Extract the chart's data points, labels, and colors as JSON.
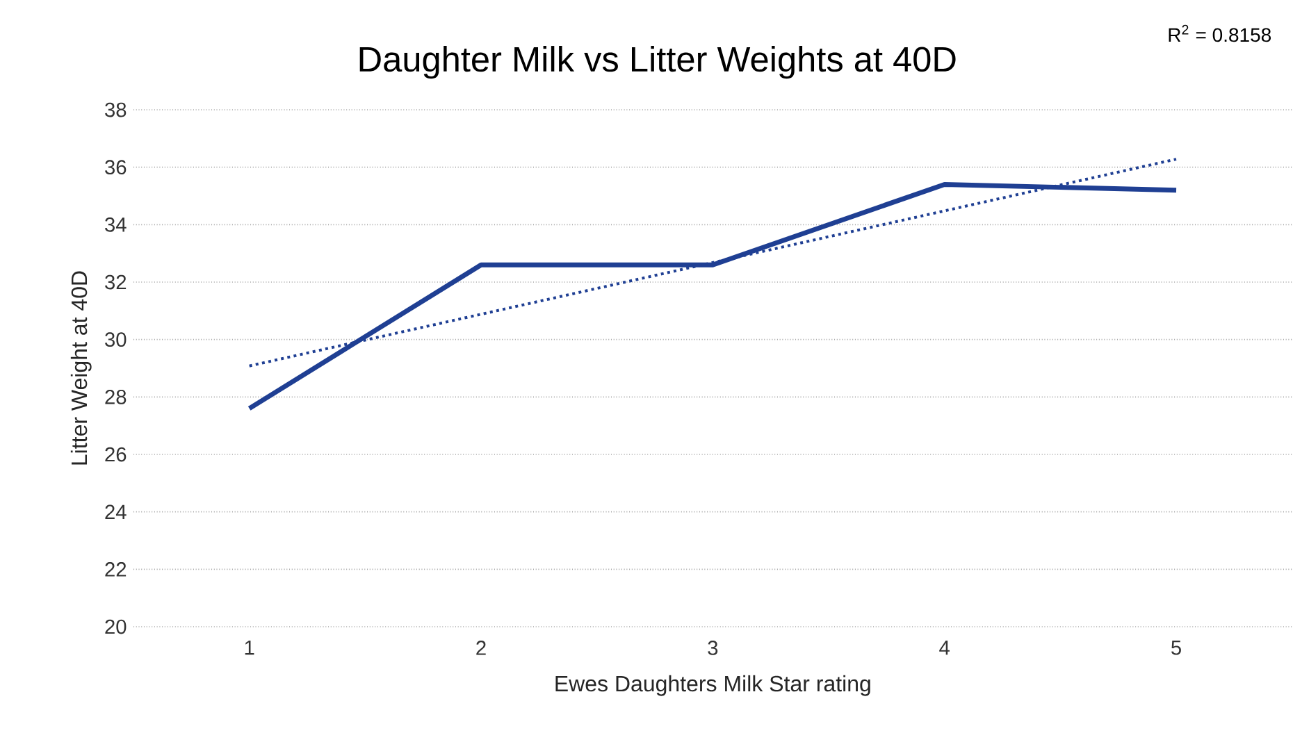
{
  "chart_data": {
    "type": "line",
    "title": "Daughter Milk vs Litter Weights at 40D",
    "xlabel": "Ewes Daughters Milk Star rating",
    "ylabel": "Litter Weight at 40D",
    "x": [
      1,
      2,
      3,
      4,
      5
    ],
    "series": [
      {
        "color": "#1f3f93",
        "values": [
          27.6,
          32.6,
          32.6,
          35.4,
          35.2
        ],
        "line_style": "solid"
      },
      {
        "type": "line",
        "color": "#1f3f93",
        "x": [
          1,
          5
        ],
        "values": [
          29.08,
          36.28
        ],
        "line_style": "dotted"
      }
    ],
    "xlim": [
      0.5,
      5.5
    ],
    "xticks": [
      1,
      2,
      3,
      4,
      5
    ],
    "ylim": [
      20,
      38
    ],
    "yticks": [
      20,
      22,
      24,
      26,
      28,
      30,
      32,
      34,
      36,
      38
    ],
    "grid": "y",
    "marker": "none",
    "annotations": [
      "R$^{2}$ = 0.8158"
    ]
  }
}
